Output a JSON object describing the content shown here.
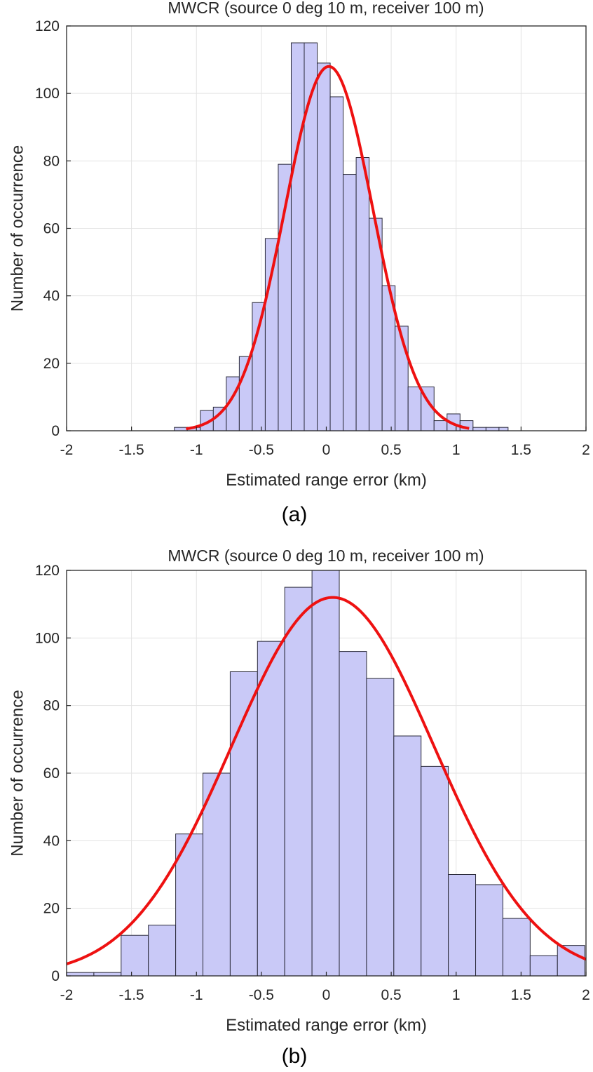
{
  "chart_data": [
    {
      "type": "bar",
      "title": "MWCR (source 0 deg 10 m, receiver 100 m)",
      "xlabel": "Estimated range error (km)",
      "ylabel": "Number of occurrence",
      "caption": "(a)",
      "xlim": [
        -2,
        2
      ],
      "ylim": [
        0,
        120
      ],
      "grid": true,
      "xticks": [
        -2,
        -1.5,
        -1,
        -0.5,
        0,
        0.5,
        1,
        1.5,
        2
      ],
      "yticks": [
        0,
        20,
        40,
        60,
        80,
        100,
        120
      ],
      "xtick_labels": [
        "-2",
        "-1.5",
        "-1",
        "-0.5",
        "0",
        "0.5",
        "1",
        "1.5",
        "2"
      ],
      "ytick_labels": [
        "0",
        "20",
        "40",
        "60",
        "80",
        "100",
        "120"
      ],
      "bin_edges": [
        -1.17,
        -1.07,
        -0.97,
        -0.87,
        -0.77,
        -0.67,
        -0.57,
        -0.47,
        -0.37,
        -0.27,
        -0.17,
        -0.07,
        0.03,
        0.13,
        0.23,
        0.33,
        0.43,
        0.53,
        0.63,
        0.73,
        0.83,
        0.93,
        1.03,
        1.13,
        1.23,
        1.33,
        1.4
      ],
      "values": [
        1,
        1,
        6,
        7,
        16,
        22,
        38,
        57,
        79,
        115,
        115,
        109,
        99,
        76,
        81,
        63,
        43,
        31,
        13,
        13,
        3,
        5,
        3,
        1,
        1,
        1
      ],
      "bar_color": "#c9c9f7",
      "fit": {
        "type": "normal",
        "peak": 108,
        "mean": 0.02,
        "sd": 0.34,
        "x_range": [
          -1.08,
          1.1
        ],
        "color": "#ee1111"
      }
    },
    {
      "type": "bar",
      "title": "MWCR (source 0 deg 10 m, receiver 100 m)",
      "xlabel": "Estimated range error (km)",
      "ylabel": "Number of occurrence",
      "caption": "(b)",
      "xlim": [
        -2,
        2
      ],
      "ylim": [
        0,
        120
      ],
      "grid": true,
      "xticks": [
        -2,
        -1.5,
        -1,
        -0.5,
        0,
        0.5,
        1,
        1.5,
        2
      ],
      "yticks": [
        0,
        20,
        40,
        60,
        80,
        100,
        120
      ],
      "xtick_labels": [
        "-2",
        "-1.5",
        "-1",
        "-0.5",
        "0",
        "0.5",
        "1",
        "1.5",
        "2"
      ],
      "ytick_labels": [
        "0",
        "20",
        "40",
        "60",
        "80",
        "100",
        "120"
      ],
      "bin_edges": [
        -2.0,
        -1.79,
        -1.58,
        -1.37,
        -1.16,
        -0.95,
        -0.74,
        -0.53,
        -0.32,
        -0.11,
        0.1,
        0.31,
        0.52,
        0.73,
        0.94,
        1.15,
        1.36,
        1.57,
        1.78,
        1.99
      ],
      "values": [
        1,
        1,
        12,
        15,
        42,
        60,
        90,
        99,
        115,
        120,
        96,
        88,
        71,
        62,
        30,
        27,
        17,
        6,
        9
      ],
      "bar_color": "#c9c9f7",
      "fit": {
        "type": "normal",
        "peak": 112,
        "mean": 0.05,
        "sd": 0.78,
        "x_range": [
          -2,
          2
        ],
        "color": "#ee1111"
      }
    }
  ]
}
